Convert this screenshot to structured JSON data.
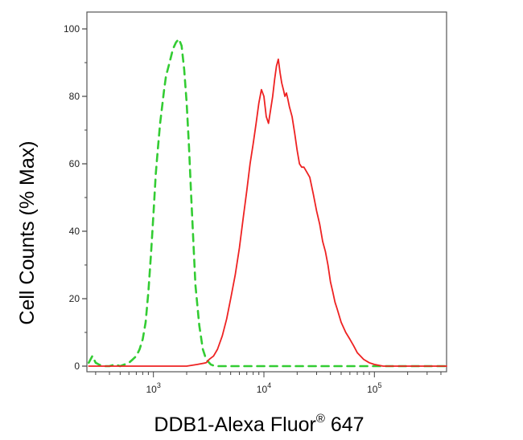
{
  "chart_data": {
    "type": "line",
    "xlabel_main": "DDB1-Alexa Fluor",
    "xlabel_sup": "®",
    "xlabel_tail": " 647",
    "ylabel": "Cell Counts (% Max)",
    "x_scale": "log",
    "xlim": [
      250,
      450000
    ],
    "ylim": [
      0,
      100
    ],
    "y_ticks": [
      0,
      20,
      40,
      60,
      80,
      100
    ],
    "x_ticks": [
      {
        "value": 1000,
        "base": "10",
        "exp": "3"
      },
      {
        "value": 10000,
        "base": "10",
        "exp": "4"
      },
      {
        "value": 100000,
        "base": "10",
        "exp": "5"
      }
    ],
    "grid": false,
    "series": [
      {
        "color": "#33cc33",
        "style": "dashed",
        "x": [
          260,
          280,
          300,
          320,
          350,
          400,
          450,
          500,
          550,
          600,
          650,
          700,
          750,
          800,
          850,
          900,
          950,
          1000,
          1050,
          1100,
          1150,
          1200,
          1250,
          1300,
          1400,
          1500,
          1600,
          1700,
          1800,
          1900,
          2000,
          2100,
          2200,
          2300,
          2400,
          2600,
          2800,
          3000,
          3300,
          3600,
          4000,
          5000,
          10000,
          30000,
          100000,
          450000
        ],
        "y": [
          1,
          3,
          1,
          0.5,
          0,
          0,
          0.5,
          0,
          0.5,
          1,
          2,
          3,
          5,
          8,
          13,
          22,
          33,
          45,
          57,
          65,
          72,
          77,
          82,
          86,
          90,
          94,
          96,
          97,
          95,
          88,
          78,
          65,
          50,
          37,
          24,
          12,
          5,
          2,
          0.5,
          0,
          0,
          0,
          0,
          0,
          0,
          0
        ]
      },
      {
        "color": "#ee2222",
        "style": "solid",
        "x": [
          260,
          500,
          1000,
          2000,
          2500,
          3000,
          3200,
          3500,
          3800,
          4200,
          4600,
          5000,
          5500,
          6000,
          6500,
          7000,
          7500,
          8000,
          8500,
          9000,
          9500,
          10000,
          10500,
          11000,
          11500,
          12000,
          12500,
          13000,
          13500,
          14000,
          14500,
          15000,
          15500,
          16000,
          16500,
          17000,
          18000,
          19000,
          20000,
          21000,
          22000,
          23000,
          24000,
          26000,
          28000,
          30000,
          32000,
          34000,
          36000,
          38000,
          40000,
          42000,
          44000,
          46000,
          50000,
          55000,
          60000,
          65000,
          70000,
          80000,
          90000,
          100000,
          120000,
          150000,
          200000,
          300000,
          450000
        ],
        "y": [
          0,
          0,
          0,
          0,
          0.5,
          1,
          2,
          3,
          5,
          9,
          14,
          20,
          27,
          35,
          44,
          52,
          60,
          66,
          72,
          78,
          82,
          80,
          74,
          72,
          76,
          80,
          85,
          89,
          91,
          87,
          84,
          82,
          80,
          81,
          79,
          77,
          74,
          69,
          64,
          60,
          59,
          59,
          58,
          56,
          51,
          46,
          42,
          37,
          34,
          30,
          25,
          22,
          19,
          17,
          13,
          10,
          8,
          6,
          4,
          2,
          1,
          0.5,
          0,
          0,
          0,
          0,
          0
        ]
      }
    ]
  }
}
